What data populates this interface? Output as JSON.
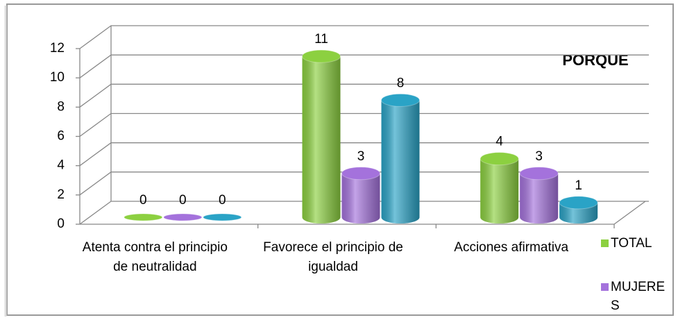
{
  "chart_data": {
    "type": "bar3d",
    "title": "PORQUE",
    "categories": [
      "Atenta contra el principio de neutralidad",
      "Favorece el principio de igualdad",
      "Acciones afirmativa"
    ],
    "series": [
      {
        "name": "TOTAL",
        "color": "#8cd040",
        "values": [
          0,
          11,
          4
        ]
      },
      {
        "name": "MUJERES",
        "color": "#a472dc",
        "values": [
          0,
          3,
          3
        ]
      },
      {
        "color": "#2aa3c6",
        "values": [
          0,
          8,
          1
        ]
      }
    ],
    "ylim": [
      0,
      12
    ],
    "yticks": [
      0,
      2,
      4,
      6,
      8,
      10,
      12
    ],
    "grid": true
  }
}
